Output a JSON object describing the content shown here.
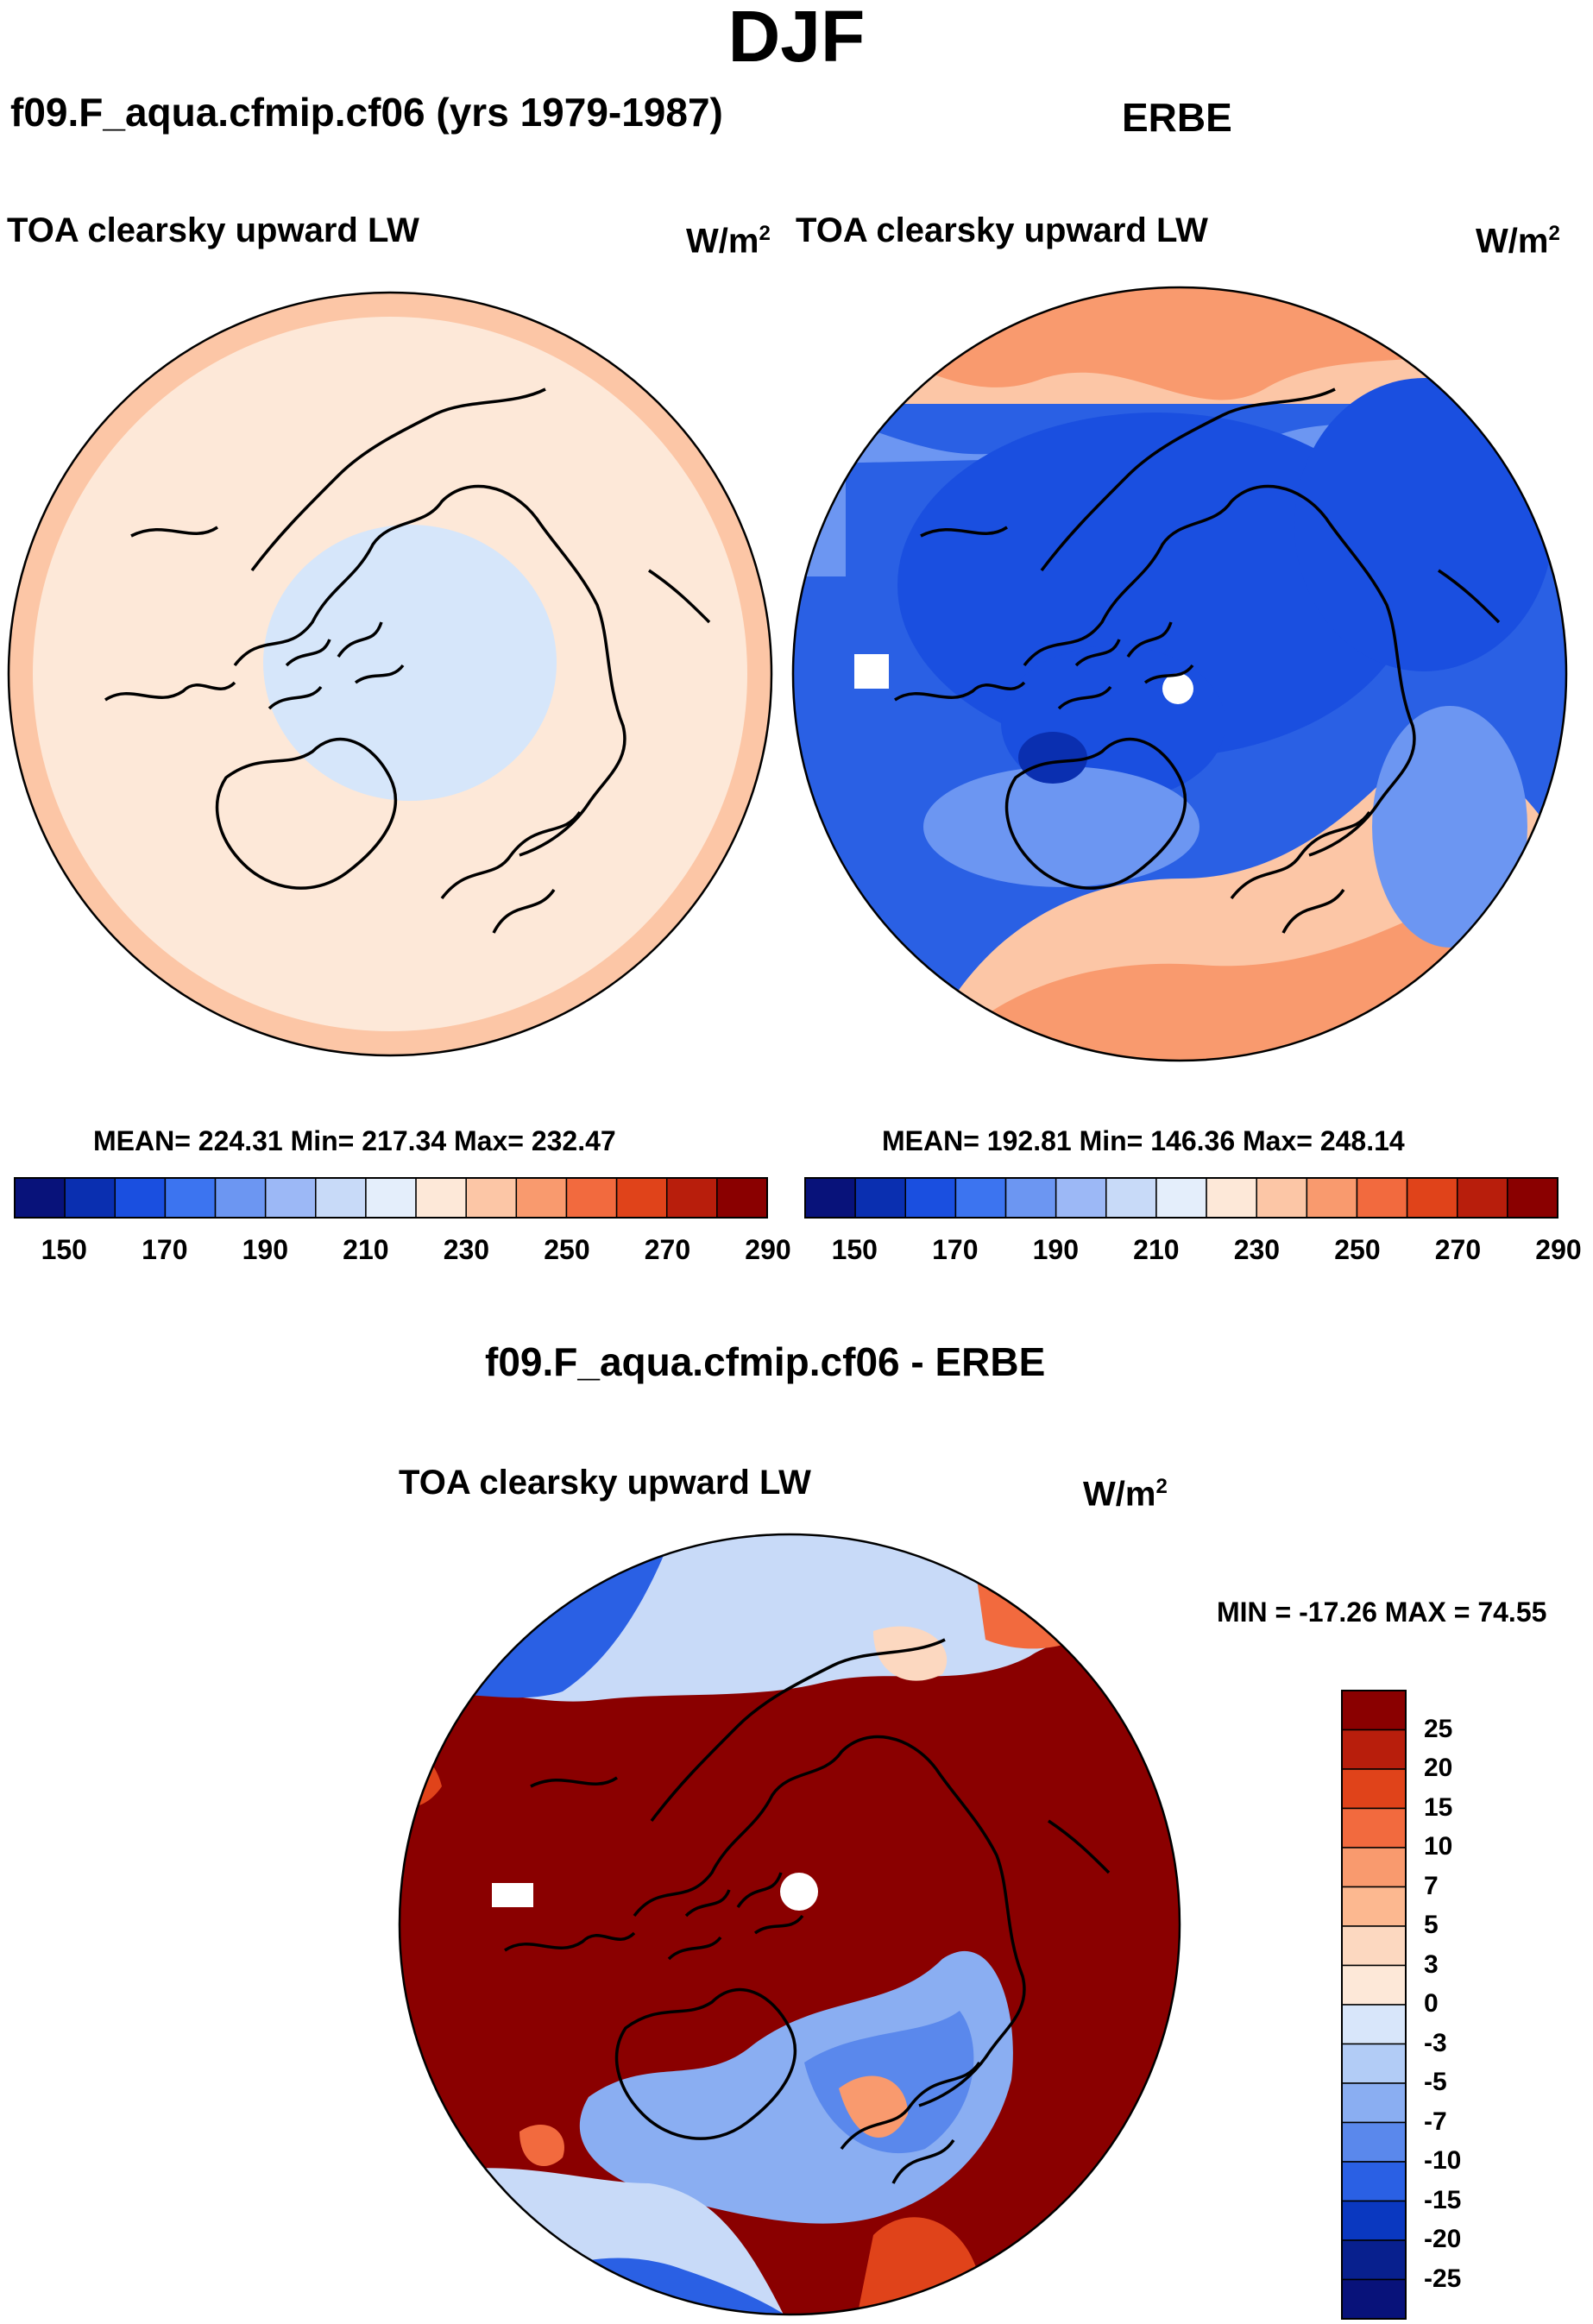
{
  "season": "DJF",
  "units_base": "W/m",
  "units_exp": "2",
  "panels": {
    "model": {
      "title": "f09.F_aqua.cfmip.cf06 (yrs 1979-1987)",
      "variable": "TOA clearsky upward LW",
      "stats": "MEAN= 224.31  Min= 217.34  Max= 232.47"
    },
    "obs": {
      "title": "ERBE",
      "variable": "TOA clearsky upward LW",
      "stats": "MEAN= 192.81  Min= 146.36  Max= 248.14"
    },
    "diff": {
      "title": "f09.F_aqua.cfmip.cf06 - ERBE",
      "variable": "TOA clearsky upward LW",
      "stats": "MIN = -17.26 MAX =  74.55"
    }
  },
  "colorbar_abs": {
    "ticks": [
      "150",
      "170",
      "190",
      "210",
      "230",
      "250",
      "270",
      "290"
    ],
    "colors": [
      "#08127a",
      "#0a2fb0",
      "#1a4fe0",
      "#3c74f0",
      "#6c96f2",
      "#9cb8f6",
      "#c8daf8",
      "#e4eefb",
      "#fde8d8",
      "#fcc6a6",
      "#f99a6e",
      "#f26a3e",
      "#e0431a",
      "#b81e0c",
      "#8a0000"
    ]
  },
  "colorbar_diff": {
    "labels": [
      "25",
      "20",
      "15",
      "10",
      "7",
      "5",
      "3",
      "0",
      "-3",
      "-5",
      "-7",
      "-10",
      "-15",
      "-20",
      "-25"
    ],
    "colors": [
      "#8a0000",
      "#b81e0c",
      "#e0431a",
      "#f26a3e",
      "#f99a6e",
      "#fcb890",
      "#fcd8c0",
      "#fde8d8",
      "#d8e6fa",
      "#b2ccf6",
      "#8aaef2",
      "#5a88ec",
      "#2a60e4",
      "#0a38c0",
      "#08208e",
      "#08127a"
    ]
  },
  "chart_data": [
    {
      "type": "heatmap",
      "title": "f09.F_aqua.cfmip.cf06 (yrs 1979-1987)",
      "subtitle": "TOA clearsky upward LW",
      "units": "W/m2",
      "projection": "north polar stereographic",
      "levels": [
        150,
        160,
        170,
        180,
        190,
        200,
        210,
        220,
        230,
        240,
        250,
        260,
        270,
        280,
        290
      ],
      "mean": 224.31,
      "min": 217.34,
      "max": 232.47
    },
    {
      "type": "heatmap",
      "title": "ERBE",
      "subtitle": "TOA clearsky upward LW",
      "units": "W/m2",
      "projection": "north polar stereographic",
      "levels": [
        150,
        160,
        170,
        180,
        190,
        200,
        210,
        220,
        230,
        240,
        250,
        260,
        270,
        280,
        290
      ],
      "mean": 192.81,
      "min": 146.36,
      "max": 248.14
    },
    {
      "type": "heatmap",
      "title": "f09.F_aqua.cfmip.cf06 - ERBE",
      "subtitle": "TOA clearsky upward LW",
      "units": "W/m2",
      "projection": "north polar stereographic",
      "levels": [
        -25,
        -20,
        -15,
        -10,
        -7,
        -5,
        -3,
        0,
        3,
        5,
        7,
        10,
        15,
        20,
        25
      ],
      "min": -17.26,
      "max": 74.55
    }
  ]
}
